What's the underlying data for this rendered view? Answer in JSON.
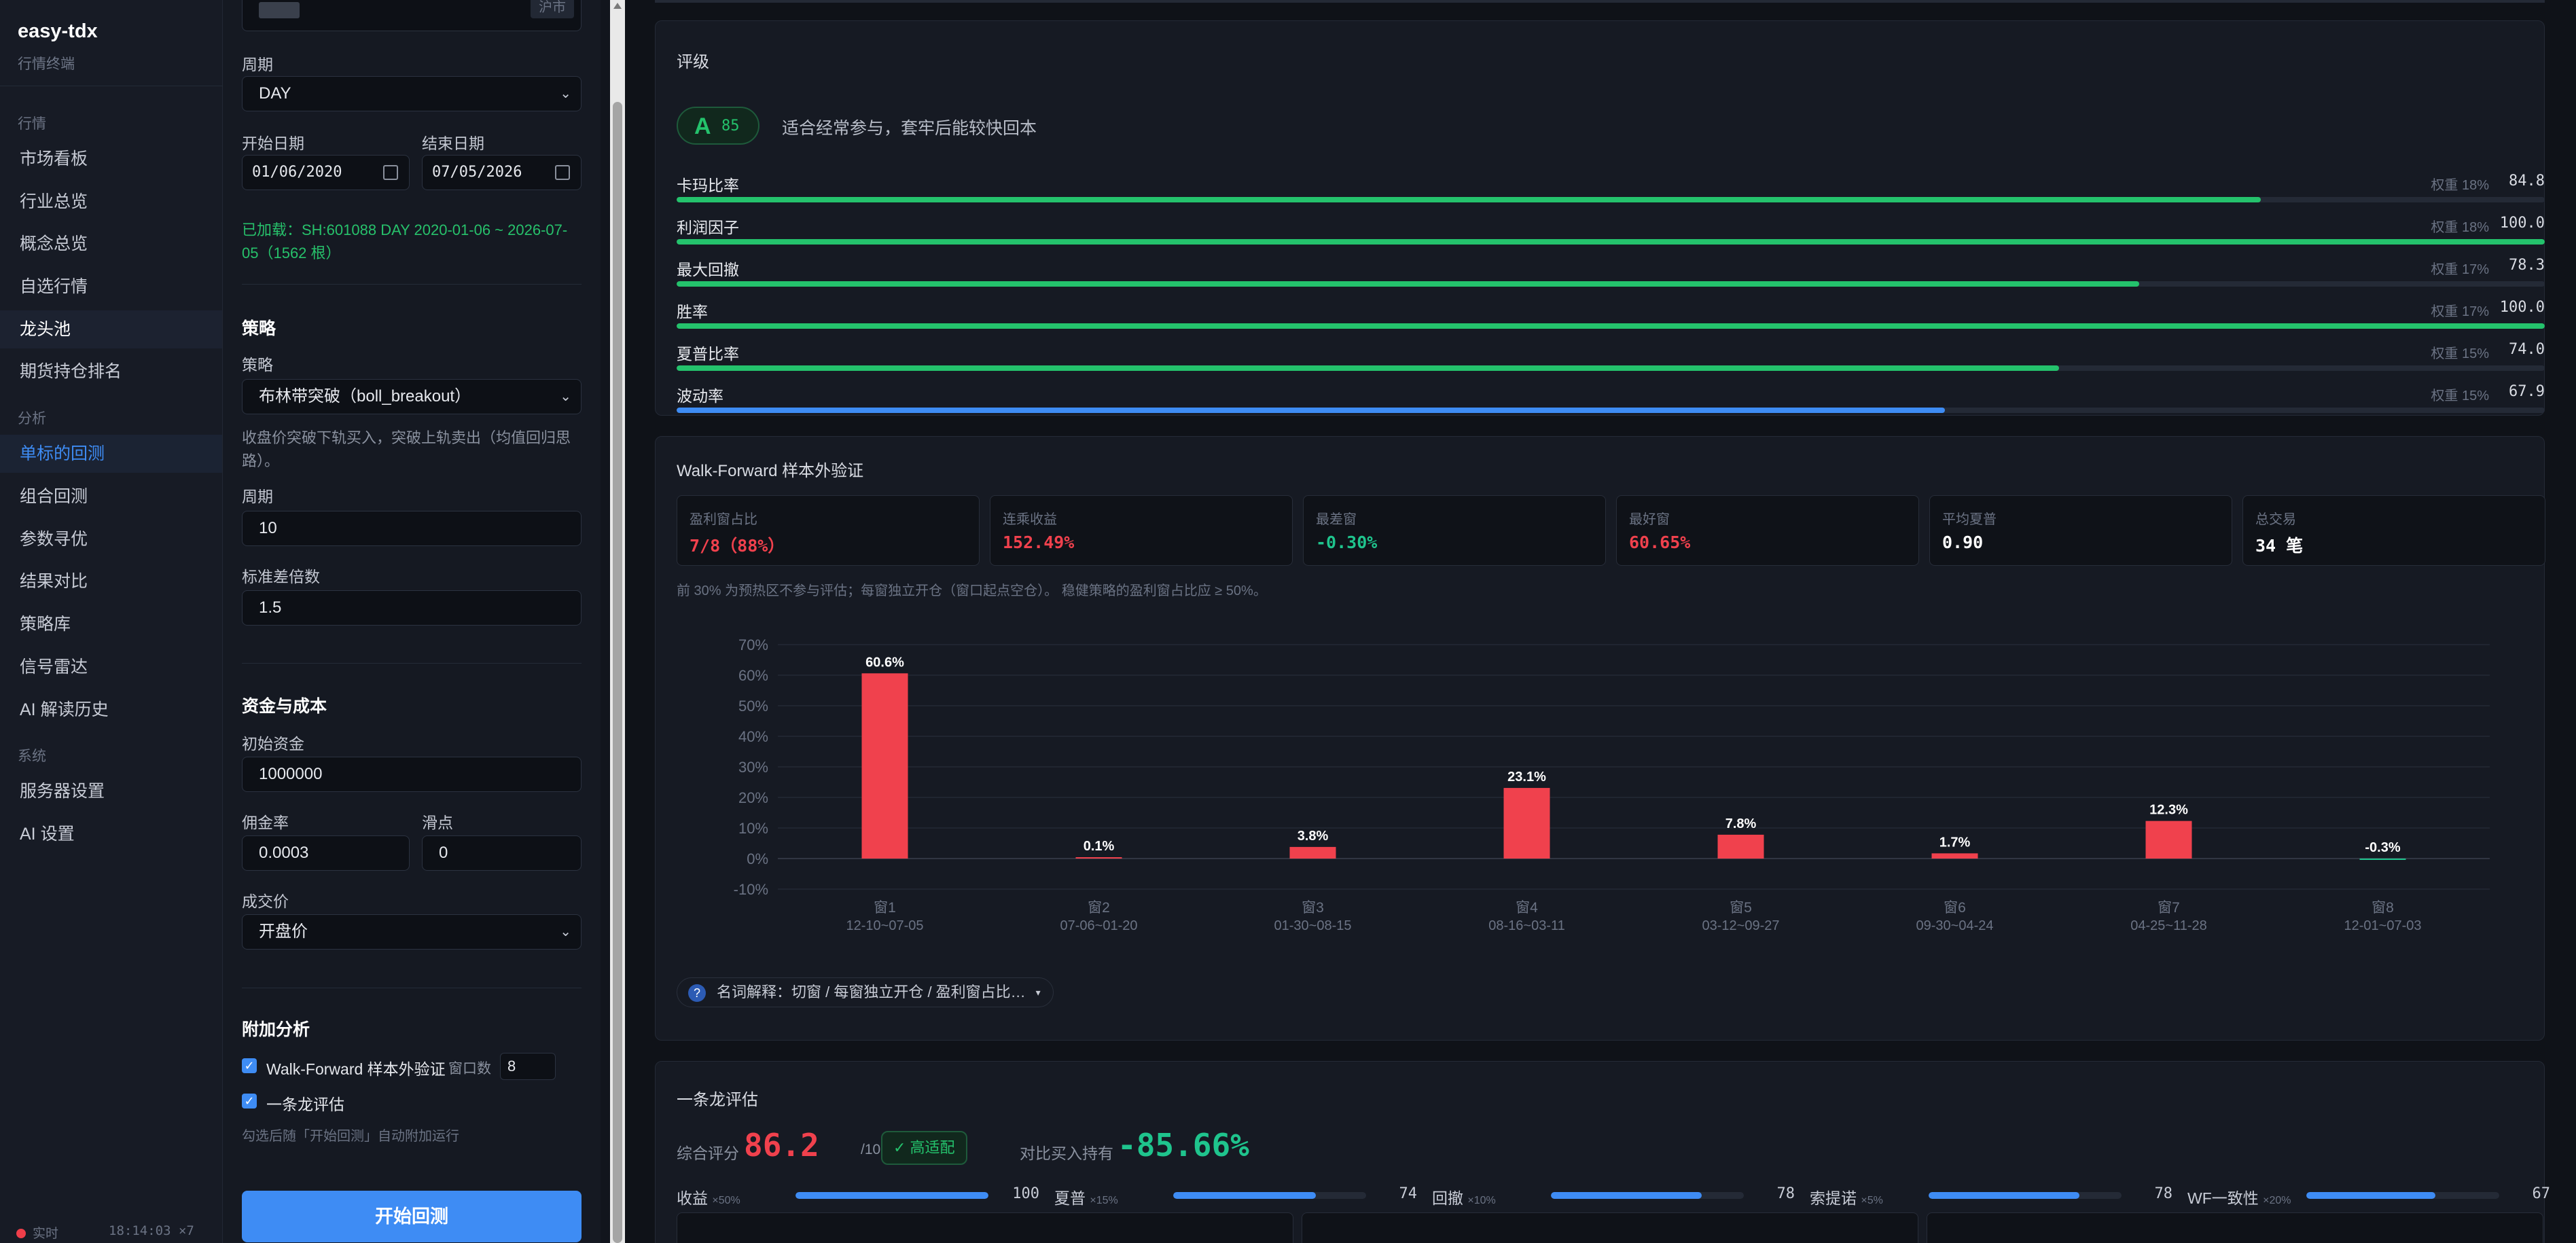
{
  "app": {
    "name": "easy-tdx",
    "subtitle": "行情终端"
  },
  "nav": {
    "sections": [
      {
        "title": "行情",
        "items": [
          "市场看板",
          "行业总览",
          "概念总览",
          "自选行情",
          "龙头池",
          "期货持仓排名"
        ]
      },
      {
        "title": "分析",
        "items": [
          "单标的回测",
          "组合回测",
          "参数寻优",
          "结果对比",
          "策略库",
          "信号雷达",
          "AI 解读历史"
        ]
      },
      {
        "title": "系统",
        "items": [
          "服务器设置",
          "AI 设置"
        ]
      }
    ],
    "active_item": "单标的回测",
    "highlight_item": "龙头池"
  },
  "status": {
    "label": "实时",
    "time": "18:14:03 ×7"
  },
  "settings": {
    "market_tag": "沪市",
    "period_label": "周期",
    "period_value": "DAY",
    "start_label": "开始日期",
    "start_value": "01/06/2020",
    "end_label": "结束日期",
    "end_value": "07/05/2026",
    "loaded_info": "已加载：SH:601088 DAY 2020-01-06 ~ 2026-07-05（1562 根）",
    "strategy_section": "策略",
    "strategy_label": "策略",
    "strategy_value": "布林带突破（boll_breakout）",
    "strategy_desc": "收盘价突破下轨买入，突破上轨卖出（均值回归思路）。",
    "param_period_label": "周期",
    "param_period_value": "10",
    "param_std_label": "标准差倍数",
    "param_std_value": "1.5",
    "capital_section": "资金与成本",
    "capital_label": "初始资金",
    "capital_value": "1000000",
    "commission_label": "佣金率",
    "commission_value": "0.0003",
    "slippage_label": "滑点",
    "slippage_value": "0",
    "price_label": "成交价",
    "price_value": "开盘价",
    "extra_section": "附加分析",
    "wf_check_label": "Walk-Forward 样本外验证",
    "wf_window_label": "窗口数",
    "wf_window_value": "8",
    "dragon_check_label": "一条龙评估",
    "extra_hint": "勾选后随「开始回测」自动附加运行",
    "start_button": "开始回测"
  },
  "rating": {
    "title": "评级",
    "grade": "A",
    "score": "85",
    "description": "适合经常参与，套牢后能较快回本",
    "metrics": [
      {
        "name": "卡玛比率",
        "weight": "权重 18%",
        "value": "84.8",
        "fill": 0.848,
        "color": "#24c26c"
      },
      {
        "name": "利润因子",
        "weight": "权重 18%",
        "value": "100.0",
        "fill": 1.0,
        "color": "#24c26c"
      },
      {
        "name": "最大回撤",
        "weight": "权重 17%",
        "value": "78.3",
        "fill": 0.783,
        "color": "#24c26c"
      },
      {
        "name": "胜率",
        "weight": "权重 17%",
        "value": "100.0",
        "fill": 1.0,
        "color": "#24c26c"
      },
      {
        "name": "夏普比率",
        "weight": "权重 15%",
        "value": "74.0",
        "fill": 0.74,
        "color": "#24c26c"
      },
      {
        "name": "波动率",
        "weight": "权重 15%",
        "value": "67.9",
        "fill": 0.679,
        "color": "#3e8cf4"
      }
    ]
  },
  "walk_forward": {
    "title": "Walk-Forward 样本外验证",
    "stats": [
      {
        "label": "盈利窗占比",
        "value": "7/8（88%）",
        "color": "#f0414d"
      },
      {
        "label": "连乘收益",
        "value": "152.49%",
        "color": "#f0414d"
      },
      {
        "label": "最差窗",
        "value": "-0.30%",
        "color": "#1fc48d"
      },
      {
        "label": "最好窗",
        "value": "60.65%",
        "color": "#f0414d"
      },
      {
        "label": "平均夏普",
        "value": "0.90",
        "color": "#ffffff"
      },
      {
        "label": "总交易",
        "value": "34 笔",
        "color": "#ffffff"
      }
    ],
    "note": "前 30% 为预热区不参与评估；每窗独立开仓（窗口起点空仓）。 稳健策略的盈利窗占比应 ≥ 50%。",
    "glossary": "名词解释：切窗 / 每窗独立开仓 / 盈利窗占比…"
  },
  "chart_data": {
    "type": "bar",
    "categories": [
      "窗1",
      "窗2",
      "窗3",
      "窗4",
      "窗5",
      "窗6",
      "窗7",
      "窗8"
    ],
    "date_ranges": [
      "12-10~07-05",
      "07-06~01-20",
      "01-30~08-15",
      "08-16~03-11",
      "03-12~09-27",
      "09-30~04-24",
      "04-25~11-28",
      "12-01~07-03"
    ],
    "values": [
      60.6,
      0.1,
      3.8,
      23.1,
      7.8,
      1.7,
      12.3,
      -0.3
    ],
    "data_labels": [
      "60.6%",
      "0.1%",
      "3.8%",
      "23.1%",
      "7.8%",
      "1.7%",
      "12.3%",
      "-0.3%"
    ],
    "y_ticks": [
      "70%",
      "60%",
      "50%",
      "40%",
      "30%",
      "20%",
      "10%",
      "0%",
      "-10%"
    ],
    "ylim": [
      -10,
      70
    ],
    "positive_color": "#f0414d",
    "negative_color": "#1fc48d",
    "grid": true
  },
  "dragon": {
    "title": "一条龙评估",
    "score_label": "综合评分",
    "score": "86.2",
    "score_max": "/100",
    "badge": "✓ 高适配",
    "compare_label": "对比买入持有",
    "compare_value": "-85.66%",
    "metrics": [
      {
        "name": "收益",
        "weight": "×50%",
        "value": "100",
        "fill": 1.0
      },
      {
        "name": "夏普",
        "weight": "×15%",
        "value": "74",
        "fill": 0.74
      },
      {
        "name": "回撤",
        "weight": "×10%",
        "value": "78",
        "fill": 0.78
      },
      {
        "name": "索提诺",
        "weight": "×5%",
        "value": "78",
        "fill": 0.78
      },
      {
        "name": "WF一致性",
        "weight": "×20%",
        "value": "67",
        "fill": 0.67
      }
    ]
  }
}
